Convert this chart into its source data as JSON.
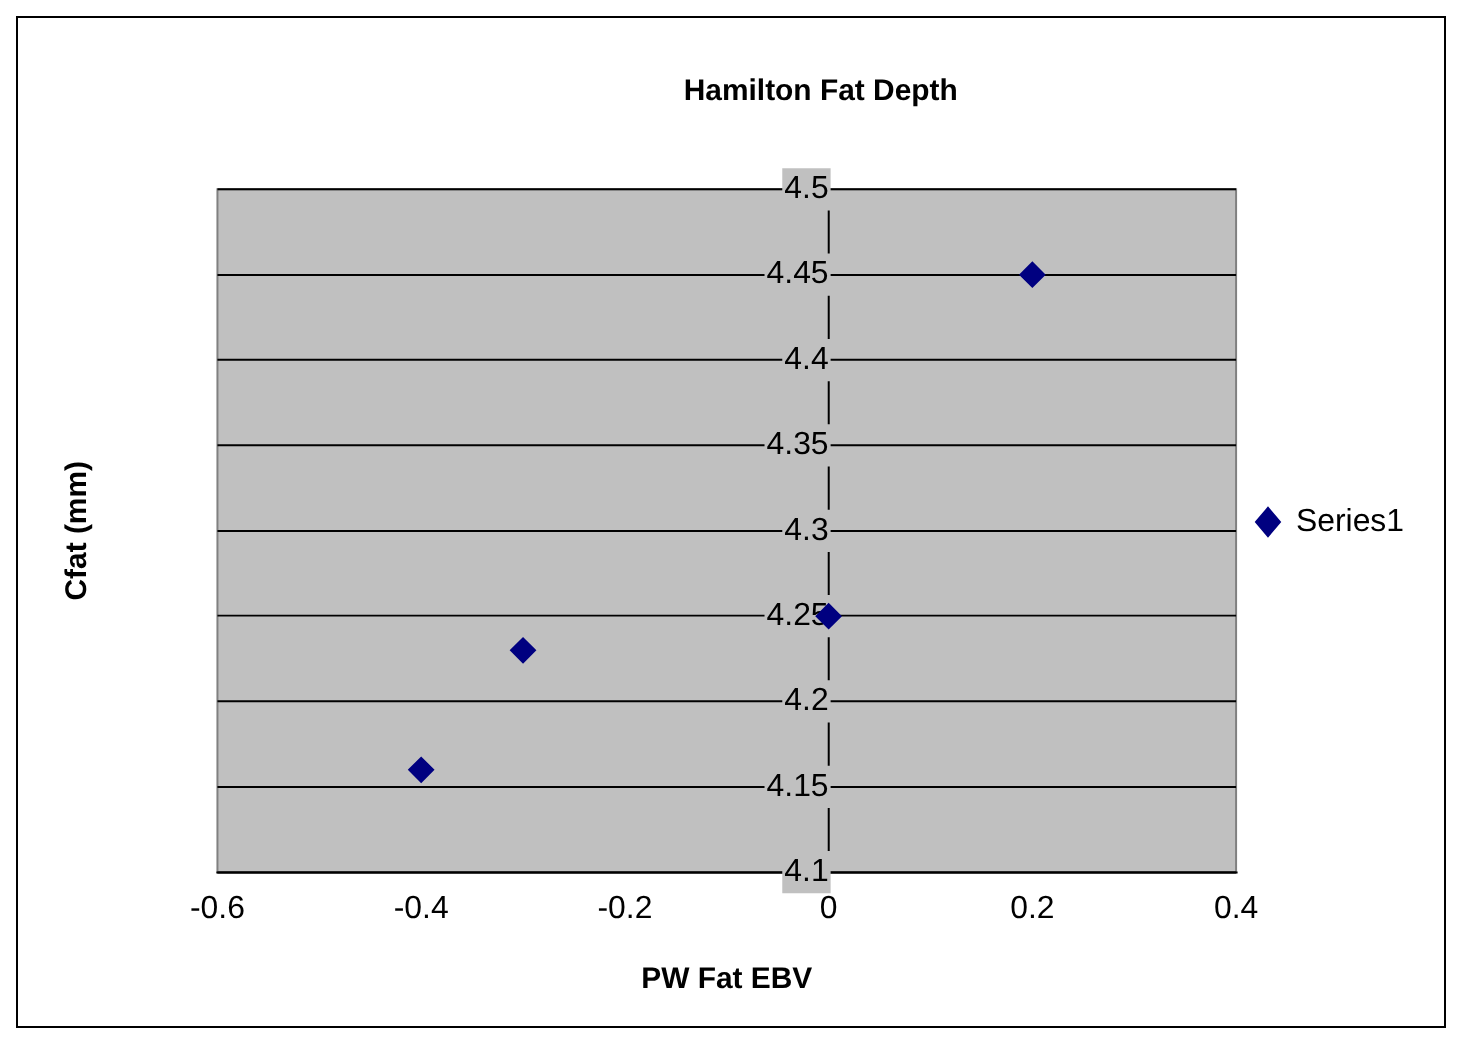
{
  "chart_data": {
    "type": "scatter",
    "title": "Hamilton Fat Depth",
    "xlabel": "PW Fat EBV",
    "ylabel": "Cfat (mm)",
    "x": [
      -0.4,
      -0.3,
      0,
      0.2
    ],
    "series": [
      {
        "name": "Series1",
        "color": "#000080",
        "values": [
          4.16,
          4.23,
          4.25,
          4.45
        ]
      }
    ],
    "xlim": [
      -0.6,
      0.4
    ],
    "xticks": [
      -0.6,
      -0.4,
      -0.2,
      0,
      0.2,
      0.4
    ],
    "ylim": [
      4.1,
      4.5
    ],
    "yticks": [
      4.1,
      4.15,
      4.2,
      4.25,
      4.3,
      4.35,
      4.4,
      4.45,
      4.5
    ],
    "grid": "y",
    "legend": "right",
    "marker": "diamond"
  }
}
